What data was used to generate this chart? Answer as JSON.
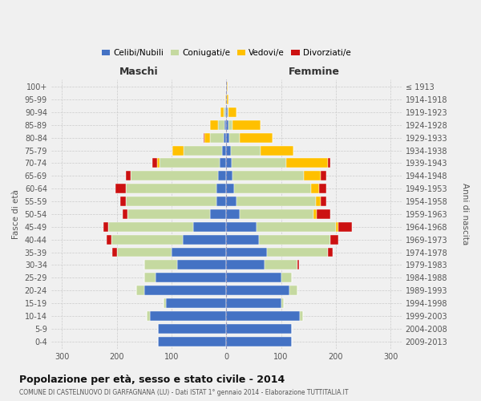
{
  "age_groups": [
    "0-4",
    "5-9",
    "10-14",
    "15-19",
    "20-24",
    "25-29",
    "30-34",
    "35-39",
    "40-44",
    "45-49",
    "50-54",
    "55-59",
    "60-64",
    "65-69",
    "70-74",
    "75-79",
    "80-84",
    "85-89",
    "90-94",
    "95-99",
    "100+"
  ],
  "birth_years": [
    "2009-2013",
    "2004-2008",
    "1999-2003",
    "1994-1998",
    "1989-1993",
    "1984-1988",
    "1979-1983",
    "1974-1978",
    "1969-1973",
    "1964-1968",
    "1959-1963",
    "1954-1958",
    "1949-1953",
    "1944-1948",
    "1939-1943",
    "1934-1938",
    "1929-1933",
    "1924-1928",
    "1919-1923",
    "1914-1918",
    "≤ 1913"
  ],
  "maschi": {
    "celibi": [
      125,
      125,
      140,
      110,
      150,
      130,
      90,
      100,
      80,
      60,
      30,
      18,
      18,
      15,
      12,
      8,
      5,
      3,
      2,
      1,
      1
    ],
    "coniugati": [
      0,
      0,
      5,
      5,
      15,
      20,
      60,
      100,
      130,
      155,
      150,
      165,
      165,
      160,
      110,
      70,
      25,
      12,
      3,
      0,
      0
    ],
    "vedovi": [
      0,
      0,
      0,
      0,
      0,
      0,
      0,
      0,
      0,
      0,
      0,
      0,
      0,
      0,
      5,
      20,
      10,
      15,
      5,
      1,
      0
    ],
    "divorziati": [
      0,
      0,
      0,
      0,
      0,
      0,
      0,
      8,
      8,
      10,
      10,
      10,
      20,
      8,
      8,
      0,
      2,
      0,
      0,
      0,
      0
    ]
  },
  "femmine": {
    "nubili": [
      120,
      120,
      135,
      100,
      115,
      100,
      70,
      75,
      60,
      55,
      25,
      18,
      15,
      12,
      10,
      8,
      6,
      4,
      2,
      1,
      1
    ],
    "coniugate": [
      0,
      0,
      5,
      5,
      15,
      20,
      60,
      110,
      130,
      145,
      135,
      145,
      140,
      130,
      100,
      55,
      18,
      8,
      2,
      0,
      0
    ],
    "vedove": [
      0,
      0,
      0,
      0,
      0,
      0,
      0,
      0,
      0,
      5,
      5,
      10,
      15,
      30,
      75,
      60,
      60,
      50,
      15,
      3,
      1
    ],
    "divorziate": [
      0,
      0,
      0,
      0,
      0,
      0,
      3,
      10,
      15,
      25,
      25,
      10,
      12,
      10,
      5,
      0,
      0,
      0,
      0,
      0,
      0
    ]
  },
  "colors": {
    "celibi": "#4472c4",
    "coniugati": "#c5d9a0",
    "vedovi": "#ffc000",
    "divorziati": "#cc1111"
  },
  "xlim": 320,
  "title": "Popolazione per età, sesso e stato civile - 2014",
  "subtitle": "COMUNE DI CASTELNUOVO DI GARFAGNANA (LU) - Dati ISTAT 1° gennaio 2014 - Elaborazione TUTTITALIA.IT",
  "ylabel_left": "Fasce di età",
  "ylabel_right": "Anni di nascita",
  "xlabel_maschi": "Maschi",
  "xlabel_femmine": "Femmine",
  "legend_labels": [
    "Celibi/Nubili",
    "Coniugati/e",
    "Vedovi/e",
    "Divorziati/e"
  ],
  "bar_height": 0.75
}
